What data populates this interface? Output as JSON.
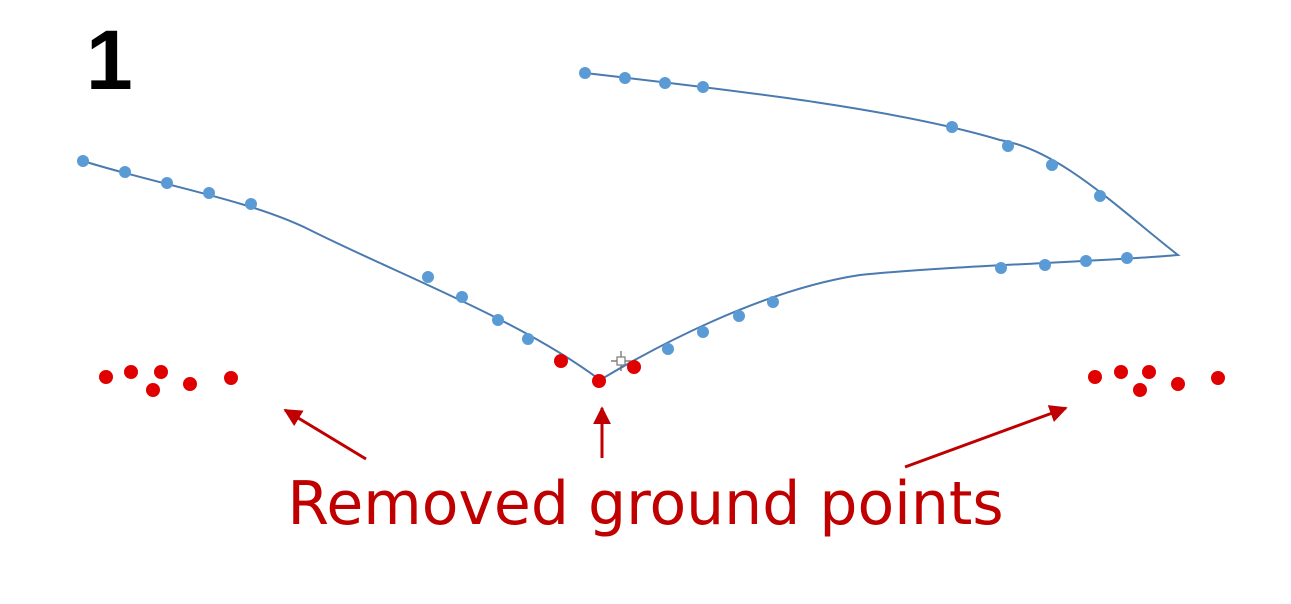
{
  "slide": {
    "number": "1"
  },
  "caption": {
    "text": "Removed ground points"
  },
  "colors": {
    "surface_line": "#4a7ab0",
    "surface_point": "#5b9bd5",
    "ground_point": "#e00000",
    "arrow": "#c00000",
    "caption": "#c00000",
    "number": "#000000"
  },
  "icons": {
    "cursor": "crosshair-move-cursor-icon"
  }
}
